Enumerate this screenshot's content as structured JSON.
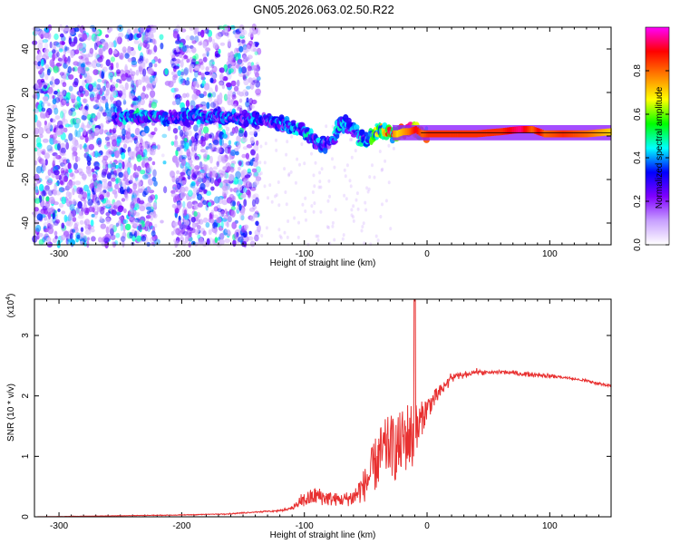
{
  "title": "GN05.2026.063.02.50.R22",
  "chart_data": [
    {
      "type": "heatmap",
      "xlabel": "Height of straight line (km)",
      "ylabel": "Frequency (Hz)",
      "xlim": [
        -320,
        150
      ],
      "ylim": [
        -50,
        50
      ],
      "xticks": [
        -300,
        -200,
        -100,
        0,
        100
      ],
      "yticks": [
        -40,
        -20,
        0,
        20,
        40
      ],
      "track": {
        "x": [
          -255,
          -240,
          -225,
          -210,
          -195,
          -180,
          -165,
          -150,
          -140,
          -130,
          -120,
          -110,
          -100,
          -95,
          -90,
          -85,
          -80,
          -75,
          -70,
          -65,
          -60,
          -55,
          -50,
          -45,
          -40,
          -35,
          -30,
          -25,
          -20,
          -15,
          -10,
          -5,
          0,
          20,
          40,
          60,
          75,
          85,
          90,
          95,
          110,
          130,
          150
        ],
        "y": [
          8,
          9,
          9,
          8,
          9,
          8,
          9,
          8,
          8,
          7,
          6,
          4,
          2,
          0,
          -3,
          -4,
          -3,
          0,
          6,
          5,
          3,
          0,
          -2,
          0,
          3,
          2,
          1,
          1,
          2,
          2,
          3,
          1,
          1,
          1,
          1,
          2,
          3,
          3,
          2,
          1,
          1,
          1,
          2
        ],
        "amplitude": [
          0.3,
          0.4,
          0.4,
          0.3,
          0.35,
          0.35,
          0.35,
          0.3,
          0.35,
          0.3,
          0.35,
          0.35,
          0.4,
          0.4,
          0.35,
          0.35,
          0.3,
          0.35,
          0.4,
          0.35,
          0.35,
          0.4,
          0.4,
          0.5,
          0.55,
          0.6,
          0.8,
          0.7,
          0.75,
          0.8,
          0.9,
          0.8,
          0.85,
          0.85,
          0.85,
          0.85,
          0.95,
          0.8,
          0.9,
          0.8,
          0.85,
          0.8,
          0.7
        ]
      },
      "colorbar": {
        "label": "Normalized spectral amplitude",
        "range": [
          0,
          1
        ],
        "ticks": [
          "0.0",
          "0.2",
          "0.4",
          "0.6",
          "0.8"
        ],
        "colors": [
          "#ffffff",
          "#c8a0ff",
          "#8000ff",
          "#0000ff",
          "#00ffff",
          "#00ff00",
          "#ffff00",
          "#ff8000",
          "#ff0000",
          "#ff00ff"
        ]
      }
    },
    {
      "type": "line",
      "series_name": "SNR",
      "color": "#e83030",
      "xlabel": "Height of straight line (km)",
      "ylabel": "SNR (10 * v/v)",
      "exponent_label": "(x10",
      "exponent_power": "4",
      "xlim": [
        -320,
        150
      ],
      "ylim": [
        0,
        3.6
      ],
      "xticks": [
        -300,
        -200,
        -100,
        0,
        100
      ],
      "yticks": [
        0,
        1,
        2,
        3
      ],
      "x": [
        -320,
        -280,
        -240,
        -200,
        -160,
        -140,
        -120,
        -110,
        -100,
        -90,
        -80,
        -70,
        -60,
        -50,
        -45,
        -40,
        -35,
        -30,
        -25,
        -20,
        -15,
        -10,
        -5,
        0,
        10,
        20,
        30,
        40,
        50,
        60,
        70,
        80,
        90,
        100,
        110,
        120,
        130,
        140,
        150
      ],
      "y": [
        0.0,
        0.01,
        0.02,
        0.03,
        0.05,
        0.08,
        0.1,
        0.15,
        0.28,
        0.35,
        0.3,
        0.28,
        0.32,
        0.55,
        0.75,
        0.95,
        1.1,
        1.2,
        1.1,
        1.25,
        1.35,
        1.3,
        1.6,
        1.8,
        2.05,
        2.3,
        2.35,
        2.4,
        2.38,
        2.4,
        2.38,
        2.36,
        2.35,
        2.33,
        2.31,
        2.28,
        2.25,
        2.2,
        2.17
      ],
      "noise_amplitude": [
        0.0,
        0.005,
        0.01,
        0.01,
        0.015,
        0.02,
        0.03,
        0.05,
        0.25,
        0.3,
        0.25,
        0.2,
        0.3,
        0.6,
        0.8,
        1.0,
        1.0,
        1.0,
        1.1,
        1.1,
        1.2,
        1.2,
        0.6,
        0.4,
        0.25,
        0.15,
        0.08,
        0.07,
        0.07,
        0.07,
        0.07,
        0.07,
        0.06,
        0.06,
        0.05,
        0.05,
        0.05,
        0.05,
        0.04
      ],
      "peak": {
        "x": -10,
        "y": 3.6
      }
    }
  ]
}
